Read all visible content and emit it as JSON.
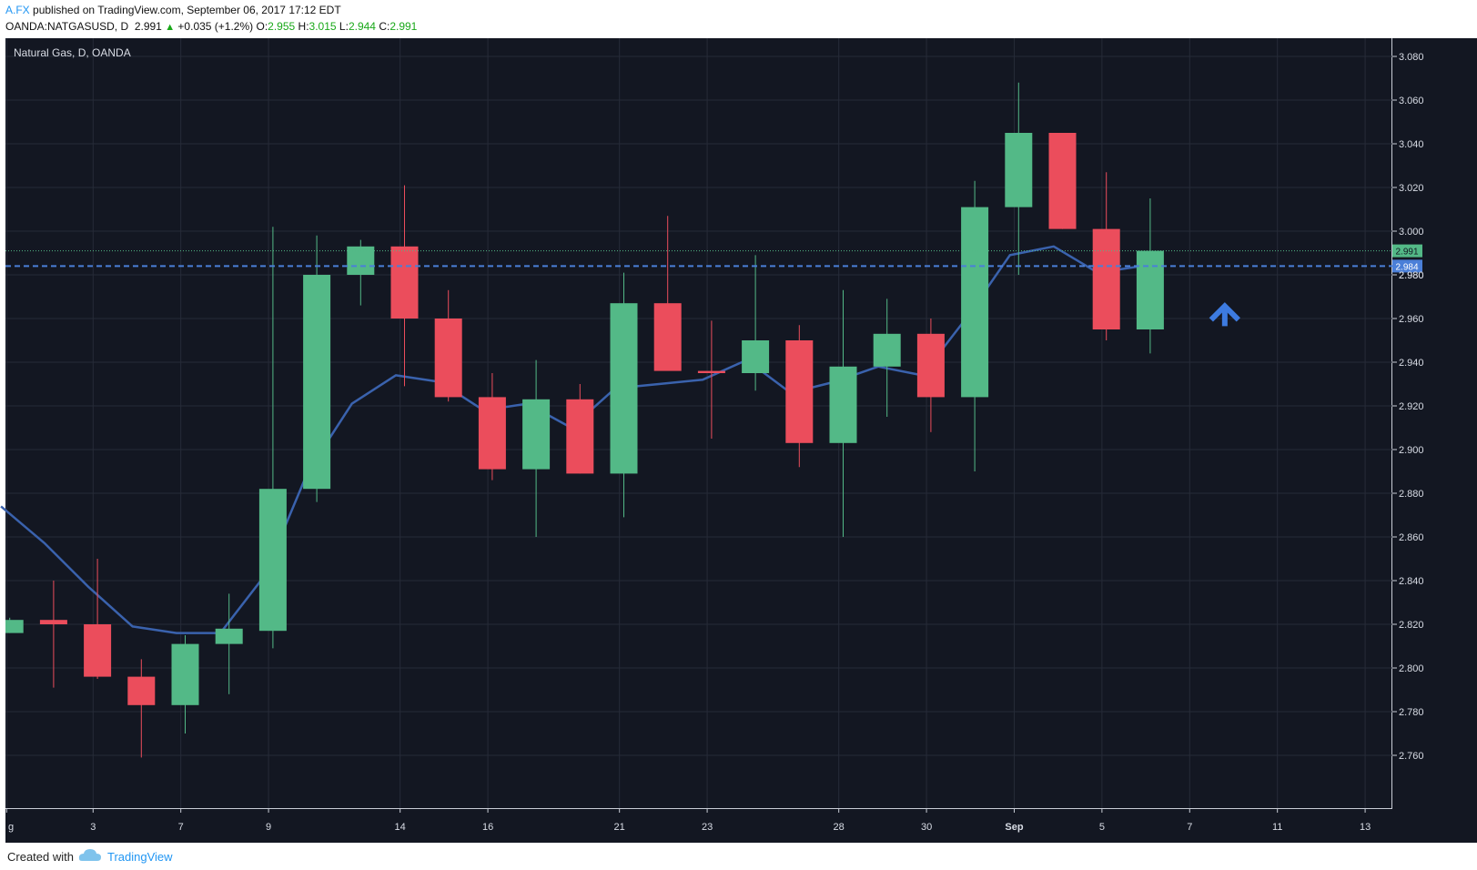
{
  "header": {
    "author": "A.FX",
    "published_text": "published on TradingView.com, September 06, 2017 17:12 EDT",
    "symbol": "OANDA:NATGASUSD, D",
    "last": "2.991",
    "change": "+0.035 (+1.2%)",
    "o_label": "O:",
    "o": "2.955",
    "h_label": "H:",
    "h": "3.015",
    "l_label": "L:",
    "l": "2.944",
    "c_label": "C:",
    "c": "2.991"
  },
  "footer": {
    "created_with": "Created with",
    "brand": "TradingView"
  },
  "colors": {
    "background": "#131722",
    "up": "#53b987",
    "down": "#eb4d5c",
    "ma": "#3a62ad",
    "hline": "#4a7fd8",
    "arrow": "#3d7be0"
  },
  "chart_data": {
    "type": "candlestick",
    "title": "Natural Gas, D, OANDA",
    "ylim": [
      2.74,
      3.09
    ],
    "y_ticks": [
      "3.080",
      "3.060",
      "3.040",
      "3.020",
      "3.000",
      "2.980",
      "2.960",
      "2.940",
      "2.920",
      "2.900",
      "2.880",
      "2.860",
      "2.840",
      "2.820",
      "2.800",
      "2.780",
      "2.760"
    ],
    "x_ticks": [
      "g",
      "3",
      "7",
      "9",
      "14",
      "16",
      "21",
      "23",
      "28",
      "30",
      "Sep",
      "5",
      "7",
      "11",
      "13"
    ],
    "candles": [
      {
        "x": 0,
        "o": 2.816,
        "h": 2.823,
        "l": 2.816,
        "c": 2.822
      },
      {
        "x": 1,
        "o": 2.822,
        "h": 2.84,
        "l": 2.791,
        "c": 2.82
      },
      {
        "x": 2,
        "o": 2.82,
        "h": 2.85,
        "l": 2.795,
        "c": 2.796
      },
      {
        "x": 3,
        "o": 2.796,
        "h": 2.804,
        "l": 2.759,
        "c": 2.783
      },
      {
        "x": 4,
        "o": 2.783,
        "h": 2.815,
        "l": 2.77,
        "c": 2.811
      },
      {
        "x": 5,
        "o": 2.811,
        "h": 2.834,
        "l": 2.788,
        "c": 2.818
      },
      {
        "x": 6,
        "o": 2.817,
        "h": 3.002,
        "l": 2.809,
        "c": 2.882
      },
      {
        "x": 7,
        "o": 2.882,
        "h": 2.998,
        "l": 2.876,
        "c": 2.98
      },
      {
        "x": 8,
        "o": 2.98,
        "h": 2.996,
        "l": 2.966,
        "c": 2.993
      },
      {
        "x": 9,
        "o": 2.993,
        "h": 3.021,
        "l": 2.929,
        "c": 2.96
      },
      {
        "x": 10,
        "o": 2.96,
        "h": 2.973,
        "l": 2.922,
        "c": 2.924
      },
      {
        "x": 11,
        "o": 2.924,
        "h": 2.935,
        "l": 2.886,
        "c": 2.891
      },
      {
        "x": 12,
        "o": 2.891,
        "h": 2.941,
        "l": 2.86,
        "c": 2.923
      },
      {
        "x": 13,
        "o": 2.923,
        "h": 2.93,
        "l": 2.889,
        "c": 2.889
      },
      {
        "x": 14,
        "o": 2.889,
        "h": 2.981,
        "l": 2.869,
        "c": 2.967
      },
      {
        "x": 15,
        "o": 2.967,
        "h": 3.007,
        "l": 2.937,
        "c": 2.936
      },
      {
        "x": 16,
        "o": 2.936,
        "h": 2.959,
        "l": 2.905,
        "c": 2.935
      },
      {
        "x": 17,
        "o": 2.935,
        "h": 2.989,
        "l": 2.927,
        "c": 2.95
      },
      {
        "x": 18,
        "o": 2.95,
        "h": 2.957,
        "l": 2.892,
        "c": 2.903
      },
      {
        "x": 19,
        "o": 2.903,
        "h": 2.973,
        "l": 2.86,
        "c": 2.938
      },
      {
        "x": 20,
        "o": 2.938,
        "h": 2.969,
        "l": 2.915,
        "c": 2.953
      },
      {
        "x": 21,
        "o": 2.953,
        "h": 2.96,
        "l": 2.908,
        "c": 2.924
      },
      {
        "x": 22,
        "o": 2.924,
        "h": 3.023,
        "l": 2.89,
        "c": 3.011
      },
      {
        "x": 23,
        "o": 3.011,
        "h": 3.068,
        "l": 2.98,
        "c": 3.045
      },
      {
        "x": 24,
        "o": 3.045,
        "h": 3.045,
        "l": 3.001,
        "c": 3.001
      },
      {
        "x": 25,
        "o": 3.001,
        "h": 3.027,
        "l": 2.95,
        "c": 2.955
      },
      {
        "x": 26,
        "o": 2.955,
        "h": 3.015,
        "l": 2.944,
        "c": 2.991
      }
    ],
    "ma": {
      "x": [
        -0.2,
        0.8,
        1.8,
        2.8,
        3.8,
        4.8,
        5.8,
        6.8,
        7.8,
        8.8,
        9.8,
        10.8,
        11.8,
        12.8,
        13.8,
        14.8,
        15.8,
        16.8,
        17.8,
        18.8,
        19.8,
        20.8,
        21.8,
        22.8,
        23.8,
        24.8,
        25.8
      ],
      "values": [
        2.874,
        2.857,
        2.837,
        2.819,
        2.816,
        2.816,
        2.842,
        2.89,
        2.921,
        2.934,
        2.931,
        2.918,
        2.921,
        2.91,
        2.928,
        2.93,
        2.932,
        2.941,
        2.926,
        2.931,
        2.938,
        2.934,
        2.96,
        2.989,
        2.993,
        2.981,
        2.984
      ]
    },
    "last_price_line": {
      "value": 2.991,
      "label": "2.991"
    },
    "ma_line": {
      "value": 2.984,
      "label": "2.984"
    },
    "tick_partial": "2.980",
    "arrow": {
      "x": 27.7,
      "y": 2.964,
      "direction": "up"
    }
  }
}
